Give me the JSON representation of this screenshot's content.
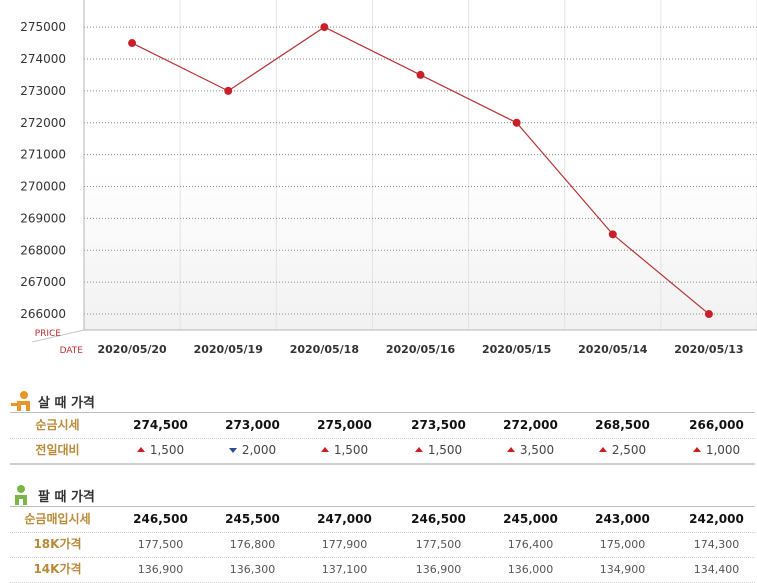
{
  "chart_data": {
    "type": "line",
    "xlabel": "DATE",
    "ylabel": "PRICE",
    "categories": [
      "2020/05/20",
      "2020/05/19",
      "2020/05/18",
      "2020/05/16",
      "2020/05/15",
      "2020/05/14",
      "2020/05/13"
    ],
    "values": [
      274500,
      273000,
      275000,
      273500,
      272000,
      268500,
      266000
    ],
    "yticks": [
      275000,
      274000,
      273000,
      272000,
      271000,
      270000,
      269000,
      268000,
      267000,
      266000
    ],
    "ylim": [
      265500,
      275850
    ],
    "grid": true,
    "line_color": "#b83232",
    "marker_color": "#c8202a"
  },
  "buy": {
    "title": "살 때 가격",
    "rows": [
      {
        "label": "순금시세",
        "values": [
          "274,500",
          "273,000",
          "275,000",
          "273,500",
          "272,000",
          "268,500",
          "266,000"
        ]
      },
      {
        "label": "전일대비",
        "values": [
          "1,500",
          "2,000",
          "1,500",
          "1,500",
          "3,500",
          "2,500",
          "1,000"
        ],
        "directions": [
          "up",
          "down",
          "up",
          "up",
          "up",
          "up",
          "up"
        ]
      }
    ]
  },
  "sell": {
    "title": "팔 때 가격",
    "rows": [
      {
        "label": "순금매입시세",
        "values": [
          "246,500",
          "245,500",
          "247,000",
          "246,500",
          "245,000",
          "243,000",
          "242,000"
        ]
      },
      {
        "label": "18K가격",
        "values": [
          "177,500",
          "176,800",
          "177,900",
          "177,500",
          "176,400",
          "175,000",
          "174,300"
        ]
      },
      {
        "label": "14K가격",
        "values": [
          "136,900",
          "136,300",
          "137,100",
          "136,900",
          "136,000",
          "134,900",
          "134,400"
        ]
      }
    ]
  },
  "colors": {
    "label_gold": "#b98a3a",
    "up": "#cc1f1f",
    "down": "#2b4f93",
    "buy_icon": "#e8962a",
    "sell_icon": "#7ab648"
  }
}
